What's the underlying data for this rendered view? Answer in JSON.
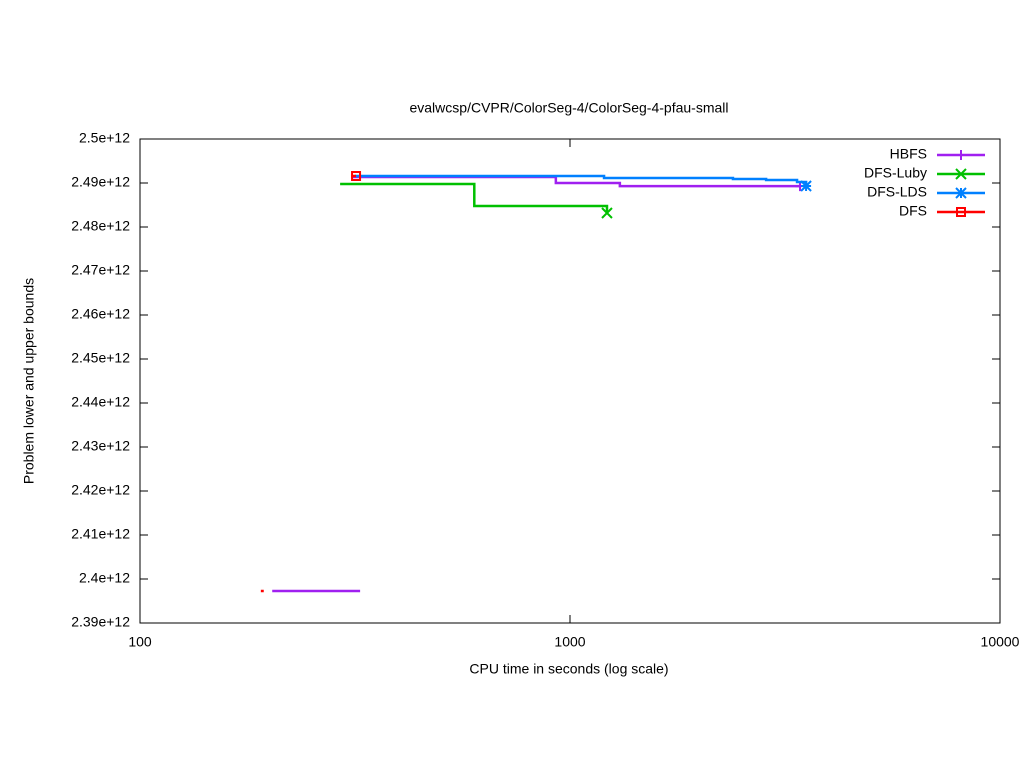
{
  "chart_data": {
    "type": "line",
    "title": "evalwcsp/CVPR/ColorSeg-4/ColorSeg-4-pfau-small",
    "x_label": "CPU time in seconds (log scale)",
    "y_label": "Problem lower and upper bounds",
    "xlog": true,
    "xlim": [
      100,
      10000
    ],
    "xticks": [
      100,
      1000,
      10000
    ],
    "ylim": [
      2390000000000,
      2500000000000
    ],
    "yticks": [
      {
        "value": 2390000000000,
        "label": "2.39e+12"
      },
      {
        "value": 2400000000000,
        "label": "2.4e+12"
      },
      {
        "value": 2410000000000,
        "label": "2.41e+12"
      },
      {
        "value": 2420000000000,
        "label": "2.42e+12"
      },
      {
        "value": 2430000000000,
        "label": "2.43e+12"
      },
      {
        "value": 2440000000000,
        "label": "2.44e+12"
      },
      {
        "value": 2450000000000,
        "label": "2.45e+12"
      },
      {
        "value": 2460000000000,
        "label": "2.46e+12"
      },
      {
        "value": 2470000000000,
        "label": "2.47e+12"
      },
      {
        "value": 2480000000000,
        "label": "2.48e+12"
      },
      {
        "value": 2490000000000,
        "label": "2.49e+12"
      },
      {
        "value": 2500000000000,
        "label": "2.5e+12"
      }
    ],
    "legend": "top-right",
    "series": [
      {
        "name": "HBFS",
        "color": "#a020f0",
        "marker": "plus",
        "x": [
          203,
          325,
          325,
          311,
          927,
          927,
          1306,
          1306,
          3427
        ],
        "values": [
          2397270000000,
          2397270000000,
          null,
          2491360000000,
          2491360000000,
          2490000000000,
          2490000000000,
          2489300000000,
          2489300000000
        ]
      },
      {
        "name": "DFS-Luby",
        "color": "#00c000",
        "marker": "cross",
        "x": [
          292,
          599,
          599,
          1219,
          1219
        ],
        "values": [
          2489770000000,
          2489770000000,
          2484770000000,
          2484770000000,
          2483180000000
        ]
      },
      {
        "name": "DFS-LDS",
        "color": "#0080ff",
        "marker": "star",
        "x": [
          316,
          1200,
          1200,
          2393,
          2393,
          2858,
          2858,
          3373,
          3373,
          3540,
          3540
        ],
        "values": [
          2491590000000,
          2491590000000,
          2491140000000,
          2491140000000,
          2490910000000,
          2490910000000,
          2490680000000,
          2490680000000,
          2490230000000,
          2490230000000,
          2489320000000
        ]
      },
      {
        "name": "DFS",
        "color": "#ff0000",
        "marker": "square",
        "x": [
          191,
          194,
          194,
          310,
          318
        ],
        "values": [
          2397270000000,
          2397270000000,
          null,
          2491590000000,
          2491590000000
        ]
      }
    ]
  }
}
